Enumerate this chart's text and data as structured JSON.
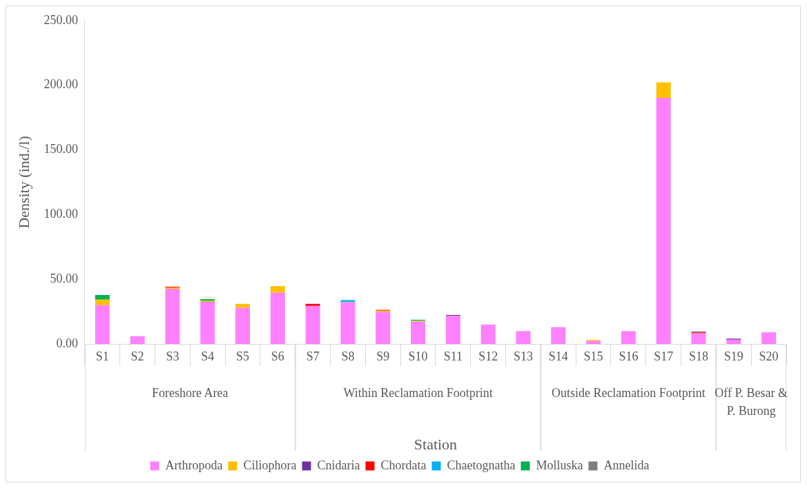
{
  "chart_data": {
    "type": "bar",
    "stacked": true,
    "xlabel": "Station",
    "ylabel": "Density (ind./l)",
    "categories": [
      "S1",
      "S2",
      "S3",
      "S4",
      "S5",
      "S6",
      "S7",
      "S8",
      "S9",
      "S10",
      "S11",
      "S12",
      "S13",
      "S14",
      "S15",
      "S16",
      "S17",
      "S18",
      "S19",
      "S20"
    ],
    "series": [
      {
        "name": "Arthropoda",
        "color": "#ff80ff",
        "values": [
          30,
          6,
          42.6,
          32.5,
          28,
          39.7,
          29.4,
          32.3,
          24.7,
          17.3,
          21.6,
          15,
          9.9,
          13,
          2.3,
          9.9,
          190.2,
          8.2,
          3.3,
          9
        ]
      },
      {
        "name": "Ciliophora",
        "color": "#ffc000",
        "values": [
          4.3,
          0,
          1,
          0.8,
          3,
          5,
          0,
          0,
          1,
          0.6,
          0,
          0,
          0,
          0,
          0.8,
          0,
          12,
          0,
          0,
          0
        ]
      },
      {
        "name": "Cnidaria",
        "color": "#7030a0",
        "values": [
          0,
          0,
          0,
          0,
          0,
          0,
          0,
          0,
          0,
          0,
          0.8,
          0,
          0,
          0,
          0,
          0,
          0,
          0,
          0.8,
          0
        ]
      },
      {
        "name": "Chordata",
        "color": "#ff0000",
        "values": [
          0,
          0,
          0.6,
          0,
          0,
          null,
          1.6,
          0,
          0.6,
          0,
          0,
          0,
          0,
          0,
          0,
          0,
          0,
          0.7,
          0,
          null
        ]
      },
      {
        "name": "Chaetognatha",
        "color": "#00b0f0",
        "values": [
          0,
          0,
          0,
          0,
          0,
          0,
          0,
          1.2,
          0,
          0,
          0,
          0,
          0,
          0,
          0,
          0,
          0,
          0,
          0,
          0
        ]
      },
      {
        "name": "Molluska",
        "color": "#00b050",
        "values": [
          3.5,
          0,
          0,
          1.3,
          0,
          0,
          0,
          0.4,
          0,
          0.8,
          0,
          0,
          0,
          0,
          0,
          0,
          0,
          0,
          0,
          0
        ]
      },
      {
        "name": "Annelida",
        "color": "#808080",
        "values": [
          0,
          0,
          0,
          0,
          0,
          0,
          0,
          0,
          0,
          0,
          0,
          0,
          0,
          0,
          0,
          0,
          0,
          0.8,
          0,
          0
        ]
      }
    ],
    "ylim": [
      0,
      250
    ],
    "yticks": [
      {
        "value": 0,
        "label": "0.00"
      },
      {
        "value": 50,
        "label": "50.00"
      },
      {
        "value": 100,
        "label": "100.00"
      },
      {
        "value": 150,
        "label": "150.00"
      },
      {
        "value": 200,
        "label": "200.00"
      },
      {
        "value": 250,
        "label": "250.00"
      }
    ],
    "grid": false,
    "legend": "bottom",
    "annotations": [
      "Foreshore Area",
      "Within Reclamation Footprint",
      "Outside Reclamation Footprint",
      "Off P. Besar & P. Burong"
    ]
  }
}
